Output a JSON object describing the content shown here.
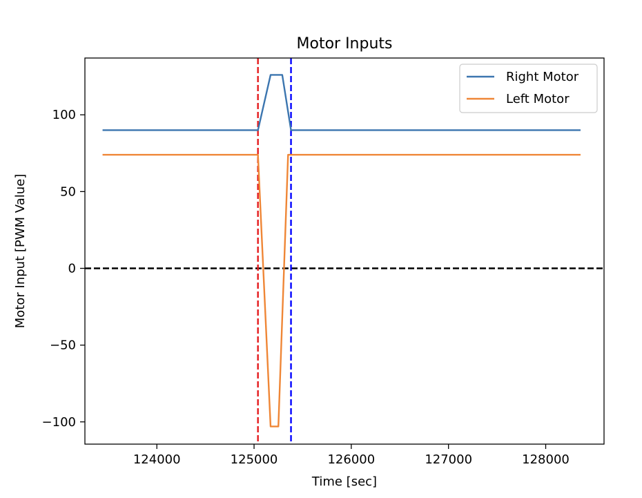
{
  "chart_data": {
    "type": "line",
    "title": "Motor Inputs",
    "xlabel": "Time [sec]",
    "ylabel": "Motor Input [PWM Value]",
    "xlim": [
      123260,
      128600
    ],
    "ylim": [
      -114.5,
      137
    ],
    "xticks": [
      124000,
      125000,
      126000,
      127000,
      128000
    ],
    "yticks": [
      -100,
      -50,
      0,
      50,
      100
    ],
    "grid": false,
    "legend_position": "top-right",
    "series": [
      {
        "name": "Right Motor",
        "color": "#3b75af",
        "x": [
          123450,
          125040,
          125170,
          125290,
          125380,
          128350
        ],
        "y": [
          90,
          90,
          126,
          126,
          90,
          90
        ]
      },
      {
        "name": "Left Motor",
        "color": "#ef8636",
        "x": [
          123450,
          125040,
          125170,
          125250,
          125350,
          128350
        ],
        "y": [
          74,
          74,
          -103,
          -103,
          74,
          74
        ]
      }
    ],
    "reference_lines": [
      {
        "orientation": "horizontal",
        "value": 0,
        "color": "#000000",
        "style": "dashed"
      },
      {
        "orientation": "vertical",
        "value": 125040,
        "color": "#e41a1c",
        "style": "dashed"
      },
      {
        "orientation": "vertical",
        "value": 125380,
        "color": "#0000ff",
        "style": "dashed"
      }
    ]
  }
}
